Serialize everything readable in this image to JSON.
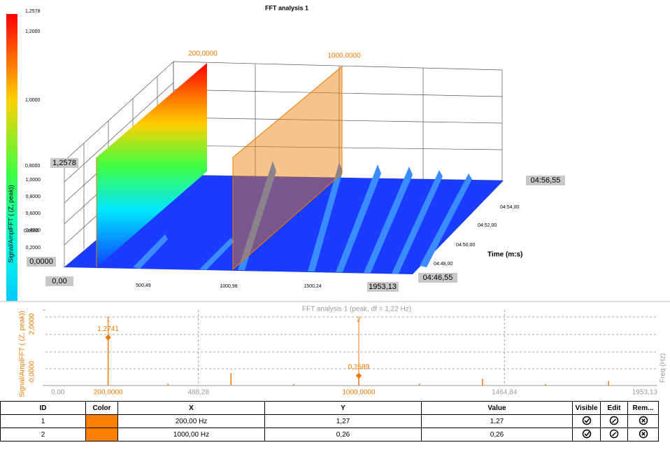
{
  "waterfall": {
    "title": "FFT analysis 1",
    "colorbar_labels": [
      "1,2578",
      "1,2000",
      "1,0000",
      "0,8000",
      "0,6000"
    ],
    "y_label": "Signal/AmplFFT ( (Z, peak))",
    "y_max_label": "1,2578",
    "y_labels": [
      "1,0000",
      "0,8000",
      "0,6000",
      "0,4000",
      "0,2000"
    ],
    "y_min_label": "0,0000",
    "x_min_label": "0,00",
    "x_labels": [
      "500,49",
      "1000,98",
      "1500,24"
    ],
    "x_max_label": "1953,13",
    "time_max_label": "04:56,55",
    "time_labels": [
      "04:54,00",
      "04:52,00",
      "04:50,00",
      "04:48,00"
    ],
    "time_min_label": "04:46,55",
    "time_axis": "Time (m:s)",
    "marker_labels": [
      "200,0000",
      "1000,0000"
    ]
  },
  "spectrum": {
    "title": "FFT analysis 1 (peak, df = 1,22 Hz)",
    "y_label": "Signal/AmplFFT ( (Z, peak))",
    "x_label": "Freq (Hz)",
    "color": "#f07800",
    "x": [
      200,
      391,
      592,
      792,
      1000,
      1194,
      1395,
      1596,
      1797
    ],
    "values": [
      1.2741,
      0.05,
      0.33,
      0.04,
      0.2589,
      0.05,
      0.18,
      0.04,
      0.12
    ],
    "xlim": [
      0,
      1953.13
    ],
    "xticks": [
      {
        "value": 0,
        "label": "0,00"
      },
      {
        "value": 488.28,
        "label": "488,28"
      },
      {
        "value": 1464.84,
        "label": "1464,84"
      },
      {
        "value": 1953.13,
        "label": "1953,13"
      }
    ],
    "ylim": [
      0,
      2
    ],
    "yticks": [
      {
        "value": 0,
        "label": "0,0000"
      },
      {
        "value": 2,
        "label": "2,0000"
      }
    ],
    "markers": [
      {
        "id": "1",
        "x": 200,
        "x_label": "200,0000",
        "value": 1.2741,
        "value_label": "1,2741"
      },
      {
        "id": "2",
        "x": 1000,
        "x_label": "1000,0000",
        "value": 0.2589,
        "value_label": "0,2589"
      }
    ]
  },
  "table": {
    "headers": [
      "ID",
      "Color",
      "X",
      "Y",
      "Value",
      "Visible",
      "Edit",
      "Rem..."
    ],
    "rows": [
      {
        "id": "1",
        "color": "#ff7f00",
        "x": "200,00 Hz",
        "y": "1,27",
        "value": "1,27"
      },
      {
        "id": "2",
        "color": "#ff7f00",
        "x": "1000,00 Hz",
        "y": "0,26",
        "value": "0,26"
      }
    ]
  }
}
